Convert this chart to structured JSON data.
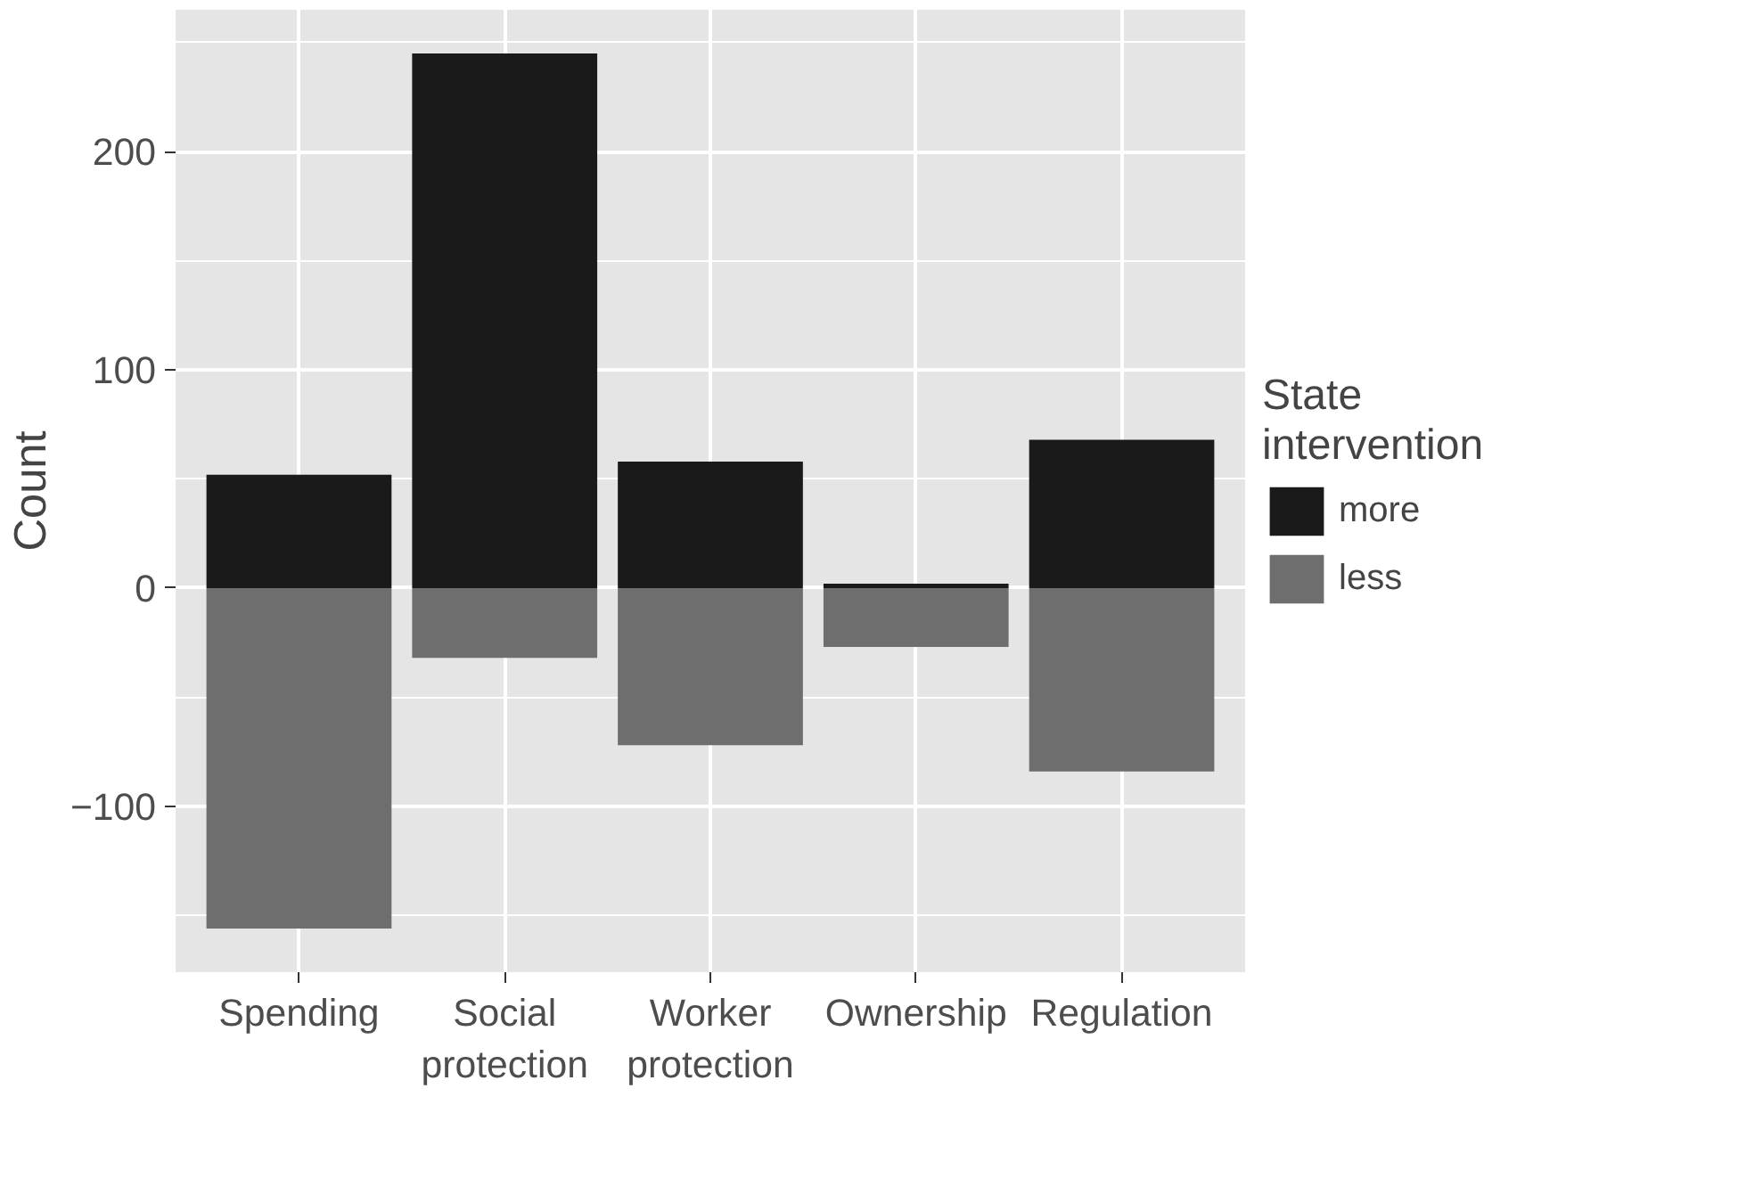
{
  "chart_data": {
    "type": "bar",
    "ylabel": "Count",
    "legend_title": "State intervention",
    "categories": [
      "Spending",
      "Social protection",
      "Worker protection",
      "Ownership",
      "Regulation"
    ],
    "series": [
      {
        "name": "more",
        "color": "#1a1a1a",
        "values": [
          52,
          245,
          58,
          2,
          68
        ]
      },
      {
        "name": "less",
        "color": "#6e6e6e",
        "values": [
          -156,
          -32,
          -72,
          -27,
          -84
        ]
      }
    ],
    "stacked": true,
    "ylim": [
      -176,
      265
    ],
    "yticks": [
      -100,
      0,
      100,
      200
    ],
    "grid": true,
    "legend": "right"
  }
}
